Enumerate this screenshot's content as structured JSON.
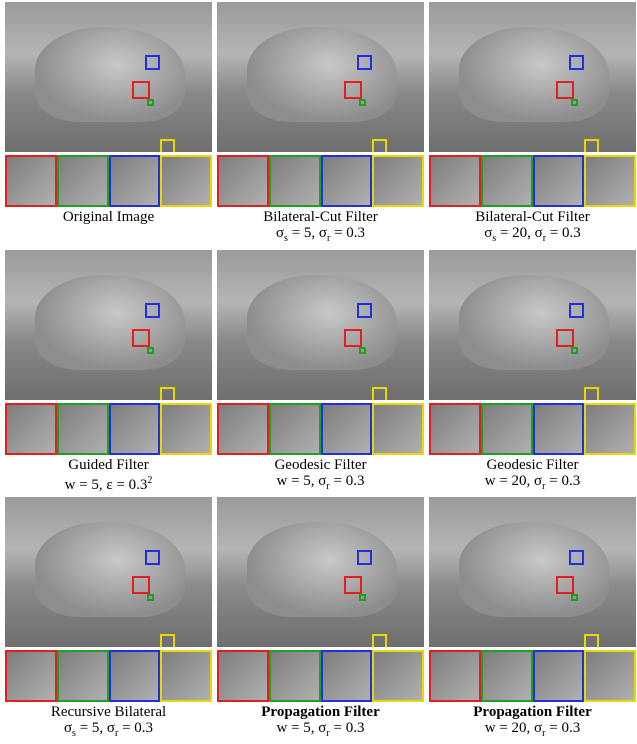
{
  "panels": [
    {
      "name": "Original Image",
      "bold": false,
      "params": []
    },
    {
      "name": "Bilateral-Cut Filter",
      "bold": false,
      "params": [
        {
          "text": "σ"
        },
        {
          "sub": "s"
        },
        {
          "text": " = 5, σ"
        },
        {
          "sub": "r"
        },
        {
          "text": " = 0.3"
        }
      ]
    },
    {
      "name": "Bilateral-Cut Filter",
      "bold": false,
      "params": [
        {
          "text": "σ"
        },
        {
          "sub": "s"
        },
        {
          "text": " = 20, σ"
        },
        {
          "sub": "r"
        },
        {
          "text": " = 0.3"
        }
      ]
    },
    {
      "name": "Guided Filter",
      "bold": false,
      "params": [
        {
          "text": "w = 5, ε = 0.3"
        },
        {
          "sup": "2"
        }
      ]
    },
    {
      "name": "Geodesic Filter",
      "bold": false,
      "params": [
        {
          "text": "w = 5, σ"
        },
        {
          "sub": "r"
        },
        {
          "text": " = 0.3"
        }
      ]
    },
    {
      "name": "Geodesic Filter",
      "bold": false,
      "params": [
        {
          "text": "w = 20, σ"
        },
        {
          "sub": "r"
        },
        {
          "text": " = 0.3"
        }
      ]
    },
    {
      "name": "Recursive Bilateral",
      "bold": false,
      "params": [
        {
          "text": "σ"
        },
        {
          "sub": "s"
        },
        {
          "text": " = 5, σ"
        },
        {
          "sub": "r"
        },
        {
          "text": " = 0.3"
        }
      ]
    },
    {
      "name": "Propagation Filter",
      "bold": true,
      "params": [
        {
          "text": "w = 5, σ"
        },
        {
          "sub": "r"
        },
        {
          "text": " = 0.3"
        }
      ]
    },
    {
      "name": "Propagation Filter",
      "bold": true,
      "params": [
        {
          "text": "w = 20, σ"
        },
        {
          "sub": "r"
        },
        {
          "text": " = 0.3"
        }
      ]
    }
  ]
}
